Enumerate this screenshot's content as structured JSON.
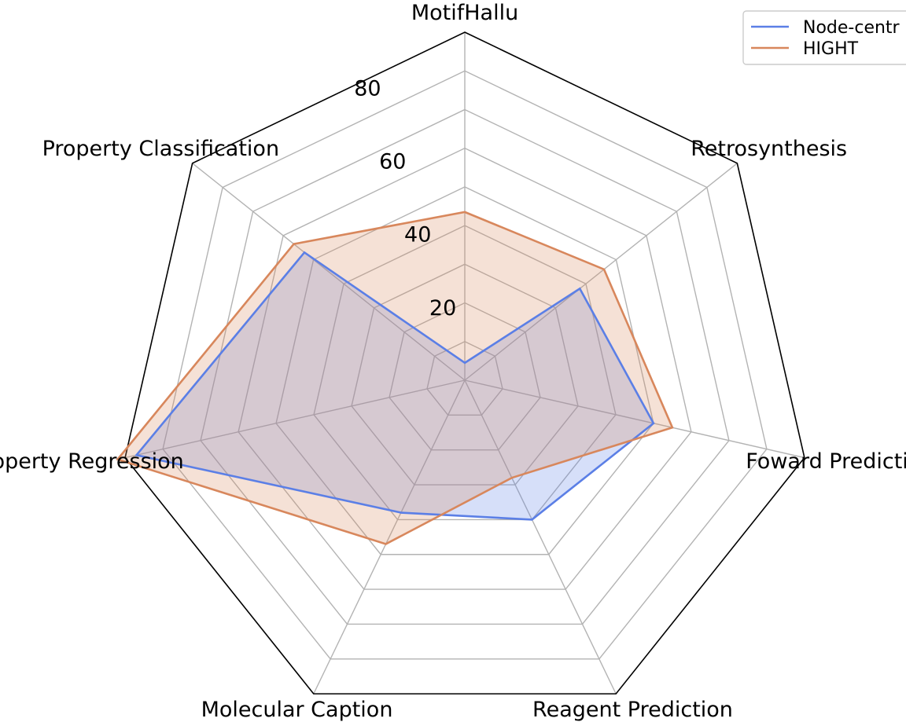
{
  "chart_data": {
    "type": "radar",
    "title": "",
    "axes": [
      "MotifHallu",
      "Retrosynthesis",
      "Foward Prediction",
      "Reagent Prediction",
      "Molecular Caption",
      "Property Regression",
      "Property Classification"
    ],
    "rlim": [
      0,
      90
    ],
    "rticks": [
      20,
      40,
      60,
      80
    ],
    "grid": true,
    "legend_placement": "top-right",
    "series": [
      {
        "name": "Node-centr",
        "color": "#5b7fe6",
        "fill": false,
        "values": [
          4.5,
          38,
          50,
          40,
          38,
          87,
          53
        ]
      },
      {
        "name": "HIGHT",
        "color": "#d8875c",
        "fill": true,
        "values": [
          43.5,
          46,
          55,
          28,
          47,
          92,
          56.5
        ]
      }
    ]
  }
}
